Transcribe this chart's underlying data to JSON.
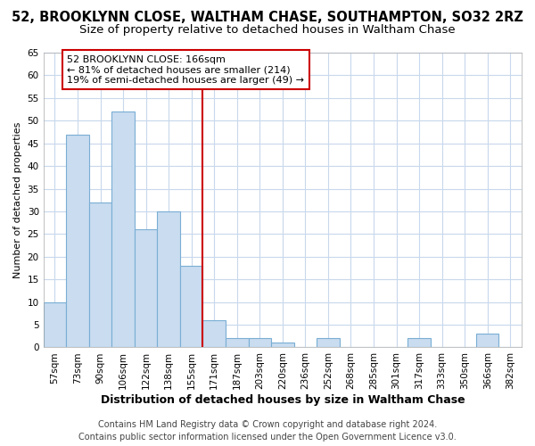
{
  "title": "52, BROOKLYNN CLOSE, WALTHAM CHASE, SOUTHAMPTON, SO32 2RZ",
  "subtitle": "Size of property relative to detached houses in Waltham Chase",
  "xlabel": "Distribution of detached houses by size in Waltham Chase",
  "ylabel": "Number of detached properties",
  "categories": [
    "57sqm",
    "73sqm",
    "90sqm",
    "106sqm",
    "122sqm",
    "138sqm",
    "155sqm",
    "171sqm",
    "187sqm",
    "203sqm",
    "220sqm",
    "236sqm",
    "252sqm",
    "268sqm",
    "285sqm",
    "301sqm",
    "317sqm",
    "333sqm",
    "350sqm",
    "366sqm",
    "382sqm"
  ],
  "values": [
    10,
    47,
    32,
    52,
    26,
    30,
    18,
    6,
    2,
    2,
    1,
    0,
    2,
    0,
    0,
    0,
    2,
    0,
    0,
    3,
    0
  ],
  "bar_color": "#c9dcf0",
  "bar_edge_color": "#7aaed4",
  "vline_x_index": 7,
  "vline_color": "#cc0000",
  "annotation_text": "52 BROOKLYNN CLOSE: 166sqm\n← 81% of detached houses are smaller (214)\n19% of semi-detached houses are larger (49) →",
  "annotation_box_color": "#cc0000",
  "ylim": [
    0,
    65
  ],
  "yticks": [
    0,
    5,
    10,
    15,
    20,
    25,
    30,
    35,
    40,
    45,
    50,
    55,
    60,
    65
  ],
  "footer_line1": "Contains HM Land Registry data © Crown copyright and database right 2024.",
  "footer_line2": "Contains public sector information licensed under the Open Government Licence v3.0.",
  "bg_color": "#ffffff",
  "plot_bg_color": "#ffffff",
  "grid_color": "#c8d8ec",
  "title_fontsize": 10.5,
  "subtitle_fontsize": 9.5,
  "xlabel_fontsize": 9,
  "ylabel_fontsize": 8,
  "tick_fontsize": 7.5,
  "annotation_fontsize": 8,
  "footer_fontsize": 7
}
